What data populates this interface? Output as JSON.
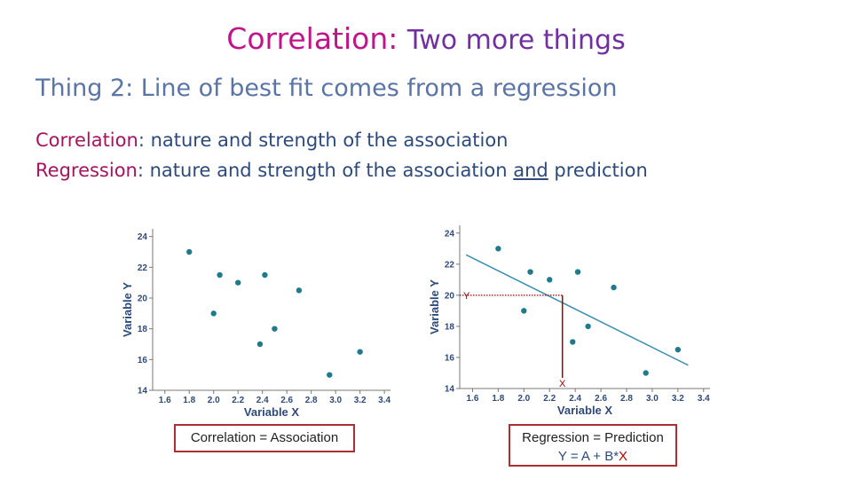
{
  "header": {
    "title_highlight": "Correlation:",
    "title_rest": "Two more things",
    "subtitle": "Thing 2: Line of best fit comes from a regression"
  },
  "definitions": {
    "correlation_term": "Correlation",
    "correlation_text": ": nature and strength of the association",
    "regression_term": "Regression",
    "regression_text": ": nature and strength of the association ",
    "regression_and": "and",
    "regression_tail": " prediction"
  },
  "captions": {
    "left": "Correlation = Association",
    "right_line1": "Regression = Prediction",
    "right_eq": "Y = A + B*",
    "right_x": "X"
  },
  "chart_data": [
    {
      "type": "scatter",
      "xlabel": "Variable X",
      "ylabel": "Variable Y",
      "xticks": [
        "1.6",
        "1.8",
        "2.0",
        "2.2",
        "2.4",
        "2.6",
        "2.8",
        "3.0",
        "3.2",
        "3.4"
      ],
      "yticks": [
        "14",
        "16",
        "18",
        "20",
        "22",
        "24"
      ],
      "xlim": [
        1.5,
        3.45
      ],
      "ylim": [
        14,
        24.5
      ],
      "points": [
        [
          1.8,
          23
        ],
        [
          2.0,
          19
        ],
        [
          2.05,
          21.5
        ],
        [
          2.2,
          21
        ],
        [
          2.38,
          17
        ],
        [
          2.42,
          21.5
        ],
        [
          2.5,
          18
        ],
        [
          2.7,
          20.5
        ],
        [
          2.95,
          15
        ],
        [
          3.2,
          16.5
        ]
      ],
      "point_color": "#1f7a8c"
    },
    {
      "type": "scatter",
      "xlabel": "Variable X",
      "ylabel": "Variable Y",
      "xticks": [
        "1.6",
        "1.8",
        "2.0",
        "2.2",
        "2.4",
        "2.6",
        "2.8",
        "3.0",
        "3.2",
        "3.4"
      ],
      "yticks": [
        "14",
        "16",
        "18",
        "20",
        "22",
        "24"
      ],
      "xlim": [
        1.5,
        3.45
      ],
      "ylim": [
        14,
        24.5
      ],
      "points": [
        [
          1.8,
          23
        ],
        [
          2.0,
          19
        ],
        [
          2.05,
          21.5
        ],
        [
          2.2,
          21
        ],
        [
          2.38,
          17
        ],
        [
          2.42,
          21.5
        ],
        [
          2.5,
          18
        ],
        [
          2.7,
          20.5
        ],
        [
          2.95,
          15
        ],
        [
          3.2,
          16.5
        ]
      ],
      "regression_line": [
        [
          1.55,
          22.6
        ],
        [
          3.28,
          15.5
        ]
      ],
      "guide_point": {
        "x": 2.3,
        "y": 20,
        "x_label": "X",
        "y_label": "Y"
      },
      "point_color": "#1f7a8c",
      "line_color": "#3a8fb0",
      "guide_color": "#a00000"
    }
  ]
}
